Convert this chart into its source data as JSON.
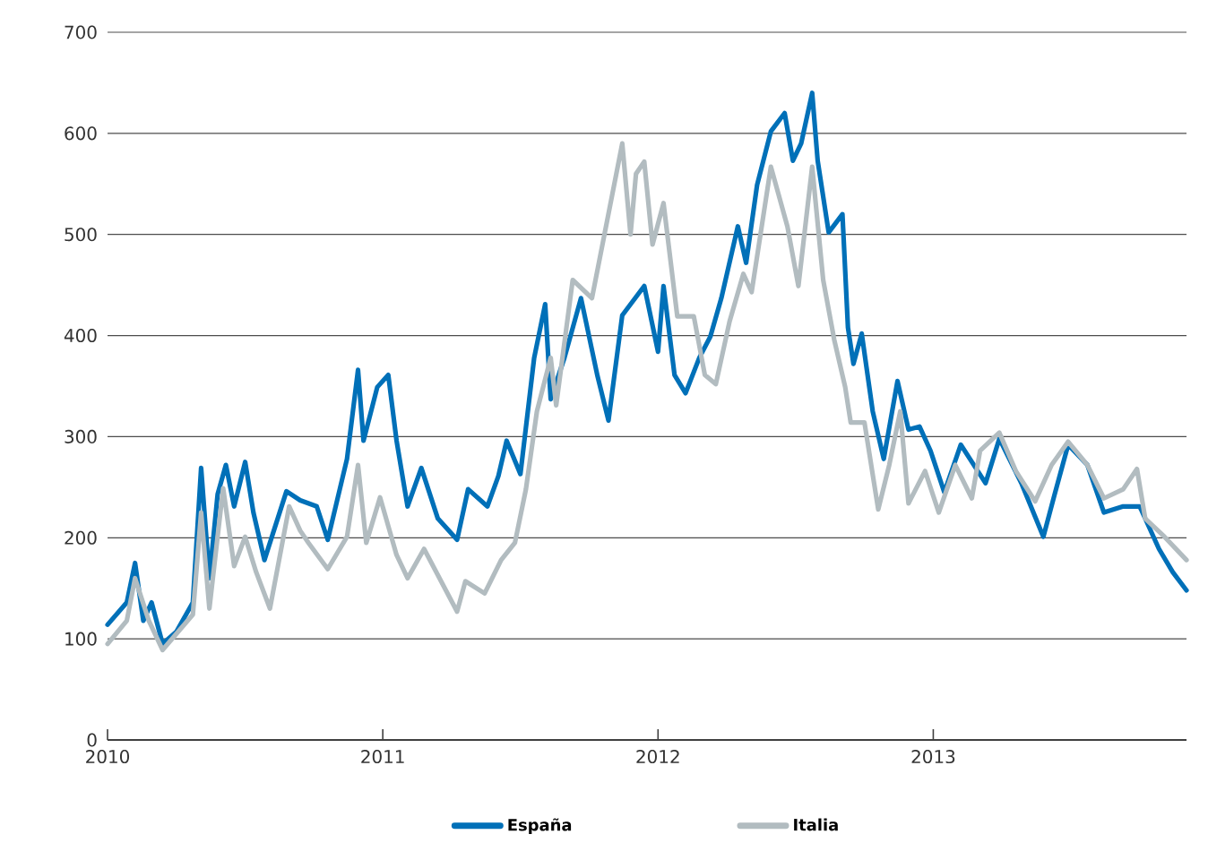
{
  "chart_data": {
    "type": "line",
    "xlim": [
      2010,
      2013.92
    ],
    "xticks": [
      2010,
      2011,
      2012,
      2013
    ],
    "ylim": [
      0,
      700
    ],
    "yticks": [
      0,
      100,
      200,
      300,
      400,
      500,
      600,
      700
    ],
    "grid": "y",
    "legend": "bottom",
    "marker": "none",
    "line_style": "solid",
    "series": [
      {
        "name": "España",
        "color": "#0070b8",
        "x": [
          2010.0,
          2010.07,
          2010.1,
          2010.13,
          2010.16,
          2010.2,
          2010.25,
          2010.31,
          2010.34,
          2010.37,
          2010.4,
          2010.43,
          2010.46,
          2010.5,
          2010.53,
          2010.57,
          2010.65,
          2010.7,
          2010.76,
          2010.8,
          2010.87,
          2010.91,
          2010.93,
          2010.98,
          2011.02,
          2011.05,
          2011.09,
          2011.14,
          2011.2,
          2011.27,
          2011.31,
          2011.38,
          2011.42,
          2011.45,
          2011.5,
          2011.55,
          2011.59,
          2011.61,
          2011.66,
          2011.72,
          2011.78,
          2011.82,
          2011.87,
          2011.95,
          2012.0,
          2012.02,
          2012.06,
          2012.1,
          2012.15,
          2012.19,
          2012.23,
          2012.29,
          2012.32,
          2012.36,
          2012.41,
          2012.46,
          2012.49,
          2012.52,
          2012.56,
          2012.58,
          2012.62,
          2012.67,
          2012.69,
          2012.71,
          2012.74,
          2012.78,
          2012.82,
          2012.87,
          2012.91,
          2012.95,
          2012.99,
          2013.04,
          2013.1,
          2013.19,
          2013.24,
          2013.32,
          2013.4,
          2013.44,
          2013.49,
          2013.56,
          2013.62,
          2013.69,
          2013.75,
          2013.82,
          2013.87,
          2013.92
        ],
        "values": [
          114,
          136,
          175,
          118,
          136,
          95,
          107,
          136,
          269,
          160,
          243,
          272,
          231,
          275,
          225,
          178,
          246,
          237,
          231,
          198,
          278,
          366,
          296,
          349,
          361,
          296,
          231,
          269,
          219,
          198,
          248,
          231,
          261,
          296,
          263,
          378,
          431,
          337,
          378,
          437,
          360,
          316,
          420,
          449,
          384,
          449,
          361,
          343,
          378,
          399,
          437,
          508,
          472,
          549,
          602,
          620,
          573,
          590,
          640,
          573,
          502,
          520,
          408,
          372,
          402,
          325,
          278,
          355,
          307,
          310,
          286,
          245,
          292,
          254,
          298,
          254,
          201,
          242,
          292,
          272,
          225,
          231,
          231,
          189,
          166,
          148
        ]
      },
      {
        "name": "Italia",
        "color": "#b2bcc0",
        "x": [
          2010.0,
          2010.07,
          2010.1,
          2010.15,
          2010.2,
          2010.31,
          2010.34,
          2010.37,
          2010.42,
          2010.46,
          2010.5,
          2010.54,
          2010.59,
          2010.66,
          2010.7,
          2010.73,
          2010.8,
          2010.87,
          2010.91,
          2010.94,
          2010.99,
          2011.05,
          2011.09,
          2011.15,
          2011.27,
          2011.3,
          2011.37,
          2011.43,
          2011.48,
          2011.52,
          2011.56,
          2011.61,
          2011.63,
          2011.69,
          2011.76,
          2011.87,
          2011.9,
          2011.92,
          2011.95,
          2011.98,
          2012.02,
          2012.07,
          2012.13,
          2012.17,
          2012.21,
          2012.26,
          2012.31,
          2012.34,
          2012.41,
          2012.47,
          2012.51,
          2012.56,
          2012.6,
          2012.64,
          2012.68,
          2012.7,
          2012.75,
          2012.8,
          2012.84,
          2012.88,
          2012.91,
          2012.97,
          2013.02,
          2013.08,
          2013.14,
          2013.17,
          2013.24,
          2013.3,
          2013.37,
          2013.43,
          2013.49,
          2013.56,
          2013.62,
          2013.69,
          2013.74,
          2013.77,
          2013.84,
          2013.92
        ],
        "values": [
          95,
          118,
          160,
          118,
          89,
          124,
          225,
          130,
          249,
          172,
          201,
          166,
          130,
          231,
          207,
          195,
          169,
          201,
          272,
          195,
          240,
          183,
          160,
          189,
          127,
          157,
          145,
          178,
          195,
          248,
          325,
          378,
          331,
          455,
          437,
          590,
          500,
          560,
          572,
          490,
          531,
          419,
          419,
          361,
          352,
          414,
          461,
          443,
          567,
          508,
          449,
          567,
          455,
          396,
          349,
          314,
          314,
          228,
          272,
          325,
          234,
          266,
          225,
          272,
          239,
          286,
          304,
          266,
          236,
          272,
          295,
          272,
          239,
          248,
          268,
          219,
          201,
          178
        ]
      }
    ]
  }
}
